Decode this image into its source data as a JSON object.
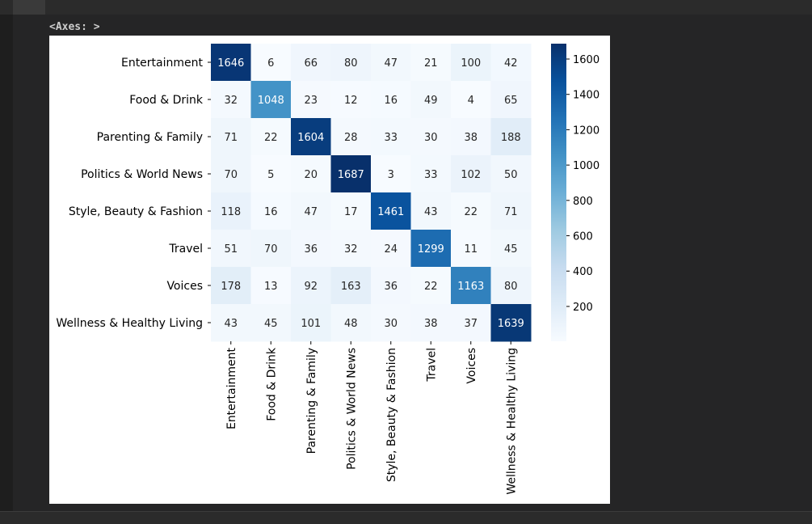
{
  "notebook": {
    "output_prompt": "<Axes: >"
  },
  "chart_data": {
    "type": "heatmap",
    "title": "",
    "xlabel": "",
    "ylabel": "",
    "row_labels": [
      "Entertainment",
      "Food & Drink",
      "Parenting & Family",
      "Politics & World News",
      "Style, Beauty & Fashion",
      "Travel",
      "Voices",
      "Wellness & Healthy Living"
    ],
    "col_labels": [
      "Entertainment",
      "Food & Drink",
      "Parenting & Family",
      "Politics & World News",
      "Style, Beauty & Fashion",
      "Travel",
      "Voices",
      "Wellness & Healthy Living"
    ],
    "values": [
      [
        1646,
        6,
        66,
        80,
        47,
        21,
        100,
        42
      ],
      [
        32,
        1048,
        23,
        12,
        16,
        49,
        4,
        65
      ],
      [
        71,
        22,
        1604,
        28,
        33,
        30,
        38,
        188
      ],
      [
        70,
        5,
        20,
        1687,
        3,
        33,
        102,
        50
      ],
      [
        118,
        16,
        47,
        17,
        1461,
        43,
        22,
        71
      ],
      [
        51,
        70,
        36,
        32,
        24,
        1299,
        11,
        45
      ],
      [
        178,
        13,
        92,
        163,
        36,
        22,
        1163,
        80
      ],
      [
        43,
        45,
        101,
        48,
        30,
        38,
        37,
        1639
      ]
    ],
    "colormap": "Blues",
    "colorbar": {
      "vmin": 3,
      "vmax": 1687,
      "ticks": [
        200,
        400,
        600,
        800,
        1000,
        1200,
        1400,
        1600
      ]
    },
    "annotations": true
  }
}
